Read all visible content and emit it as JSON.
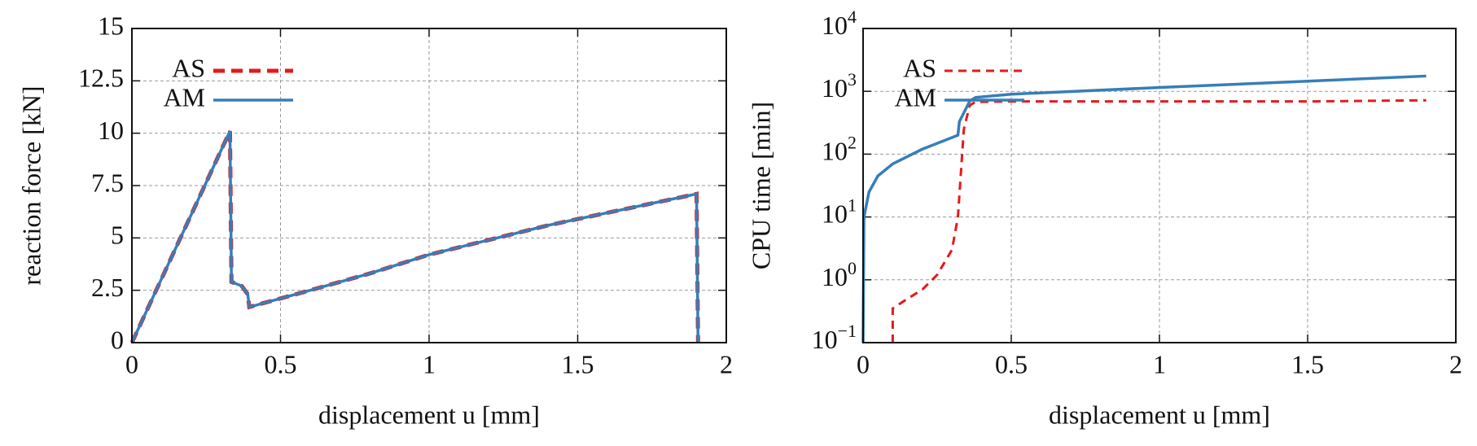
{
  "chart_data": [
    {
      "type": "line",
      "xlabel": "displacement u [mm]",
      "ylabel": "reaction force [kN]",
      "xlim": [
        0,
        2
      ],
      "xticks": [
        0,
        0.5,
        1,
        1.5,
        2
      ],
      "ylim": [
        0,
        15
      ],
      "yticks": [
        0,
        2.5,
        5,
        7.5,
        10,
        12.5,
        15
      ],
      "grid": true,
      "legend": "upper-left",
      "series": [
        {
          "name": "AS",
          "color": "#e41a1c",
          "style": "dashed",
          "x": [
            0,
            0.33,
            0.335,
            0.37,
            0.39,
            0.395,
            0.6,
            0.8,
            1.0,
            1.2,
            1.4,
            1.6,
            1.8,
            1.9,
            1.905
          ],
          "values": [
            0,
            10.1,
            2.9,
            2.7,
            2.3,
            1.7,
            2.5,
            3.3,
            4.2,
            4.9,
            5.6,
            6.2,
            6.8,
            7.1,
            0
          ]
        },
        {
          "name": "AM",
          "color": "#377eb8",
          "style": "solid",
          "x": [
            0,
            0.33,
            0.335,
            0.37,
            0.39,
            0.395,
            0.6,
            0.8,
            1.0,
            1.2,
            1.4,
            1.6,
            1.8,
            1.9,
            1.905
          ],
          "values": [
            0,
            10.1,
            2.9,
            2.7,
            2.3,
            1.7,
            2.5,
            3.3,
            4.2,
            4.9,
            5.6,
            6.2,
            6.8,
            7.1,
            0
          ]
        }
      ]
    },
    {
      "type": "line",
      "xlabel": "displacement u [mm]",
      "ylabel": "CPU time [min]",
      "xlim": [
        0,
        2
      ],
      "xticks": [
        0,
        0.5,
        1,
        1.5,
        2
      ],
      "ylim": [
        0.1,
        10000
      ],
      "log_y": true,
      "yticks": [
        {
          "value": 0.1,
          "label": "10",
          "exponent": "−1"
        },
        {
          "value": 1,
          "label": "10",
          "exponent": "0"
        },
        {
          "value": 10,
          "label": "10",
          "exponent": "1"
        },
        {
          "value": 100,
          "label": "10",
          "exponent": "2"
        },
        {
          "value": 1000,
          "label": "10",
          "exponent": "3"
        },
        {
          "value": 10000,
          "label": "10",
          "exponent": "4"
        }
      ],
      "grid": true,
      "legend": "upper-left",
      "series": [
        {
          "name": "AS",
          "color": "#e41a1c",
          "style": "dashed",
          "x": [
            0.1,
            0.1,
            0.15,
            0.2,
            0.25,
            0.3,
            0.32,
            0.33,
            0.34,
            0.36,
            0.38,
            0.5,
            1.0,
            1.5,
            1.9
          ],
          "values": [
            0.1,
            0.35,
            0.5,
            0.7,
            1.2,
            3,
            10,
            50,
            250,
            600,
            680,
            690,
            690,
            690,
            720
          ]
        },
        {
          "name": "AM",
          "color": "#377eb8",
          "style": "solid",
          "x": [
            0,
            0.003,
            0.02,
            0.05,
            0.1,
            0.2,
            0.32,
            0.325,
            0.36,
            0.38,
            0.5,
            1.0,
            1.5,
            1.9
          ],
          "values": [
            0.1,
            10,
            25,
            45,
            70,
            120,
            200,
            330,
            700,
            800,
            900,
            1150,
            1450,
            1750
          ]
        }
      ]
    }
  ]
}
